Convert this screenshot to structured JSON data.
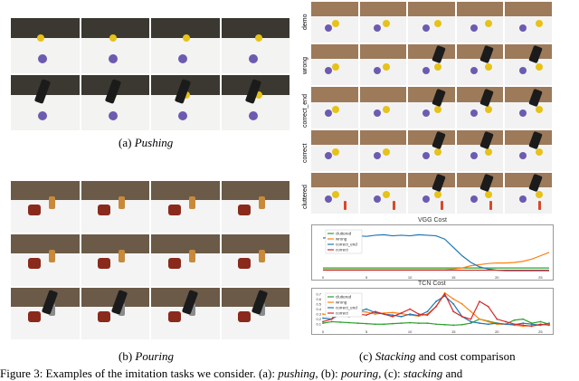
{
  "captions": {
    "pushing": "(a) Pushing",
    "pouring": "(b) Pouring",
    "stacking": "(c) Stacking and cost comparison"
  },
  "caption_parts": {
    "pushing_prefix": "(a) ",
    "pushing_em": "Pushing",
    "pouring_prefix": "(b) ",
    "pouring_em": "Pouring",
    "stacking_prefix": "(c) ",
    "stacking_em": "Stacking",
    "stacking_suffix": " and cost comparison"
  },
  "figure_caption": {
    "prefix": "Figure 3: Examples of the imitation tasks we consider. (a): ",
    "em1": "pushing",
    "mid1": ", (b): ",
    "em2": "pouring",
    "mid2": ", (c): ",
    "em3": "stacking",
    "suffix": " and"
  },
  "stacking_rows": [
    "demo",
    "wrong",
    "correct_end",
    "correct",
    "cluttered"
  ],
  "colors": {
    "cluttered": "#2ca02c",
    "wrong": "#ff7f0e",
    "correct_end": "#1f77b4",
    "correct": "#d62728",
    "wall": "#9c7a5a",
    "table": "#f2f2f2"
  },
  "chart_data": [
    {
      "type": "line",
      "title": "VGG Cost",
      "x": [
        0,
        1,
        2,
        3,
        4,
        5,
        6,
        7,
        8,
        9,
        10,
        11,
        12,
        13,
        14,
        15,
        16,
        17,
        18,
        19,
        20,
        21,
        22,
        23,
        24,
        25,
        26
      ],
      "xticks": [
        "0",
        "5",
        "10",
        "15",
        "20",
        "25"
      ],
      "legend_position": "top-left",
      "grid": false,
      "series": [
        {
          "name": "cluttered",
          "color": "#2ca02c",
          "values": [
            0.08,
            0.08,
            0.08,
            0.08,
            0.08,
            0.08,
            0.08,
            0.08,
            0.08,
            0.08,
            0.08,
            0.08,
            0.08,
            0.08,
            0.08,
            0.08,
            0.08,
            0.08,
            0.08,
            0.08,
            0.08,
            0.08,
            0.08,
            0.08,
            0.08,
            0.08,
            0.08
          ]
        },
        {
          "name": "wrong",
          "color": "#ff7f0e",
          "values": [
            0.05,
            0.05,
            0.05,
            0.05,
            0.05,
            0.05,
            0.05,
            0.05,
            0.05,
            0.05,
            0.05,
            0.05,
            0.05,
            0.05,
            0.05,
            0.06,
            0.08,
            0.12,
            0.14,
            0.16,
            0.17,
            0.17,
            0.18,
            0.2,
            0.24,
            0.3,
            0.36
          ]
        },
        {
          "name": "correct_end",
          "color": "#1f77b4",
          "values": [
            0.62,
            0.63,
            0.62,
            0.64,
            0.66,
            0.65,
            0.67,
            0.68,
            0.66,
            0.67,
            0.66,
            0.68,
            0.67,
            0.66,
            0.6,
            0.45,
            0.3,
            0.18,
            0.1,
            0.06,
            0.04,
            0.03,
            0.03,
            0.03,
            0.03,
            0.03,
            0.03
          ]
        },
        {
          "name": "correct",
          "color": "#d62728",
          "values": [
            0.04,
            0.04,
            0.04,
            0.04,
            0.04,
            0.04,
            0.04,
            0.04,
            0.04,
            0.04,
            0.04,
            0.04,
            0.04,
            0.04,
            0.04,
            0.04,
            0.04,
            0.04,
            0.04,
            0.04,
            0.04,
            0.04,
            0.04,
            0.04,
            0.04,
            0.04,
            0.04
          ]
        }
      ],
      "ylim": [
        0,
        0.8
      ]
    },
    {
      "type": "line",
      "title": "TCN Cost",
      "x": [
        0,
        1,
        2,
        3,
        4,
        5,
        6,
        7,
        8,
        9,
        10,
        11,
        12,
        13,
        14,
        15,
        16,
        17,
        18,
        19,
        20,
        21,
        22,
        23,
        24,
        25,
        26
      ],
      "xticks": [
        "0",
        "5",
        "10",
        "15",
        "20",
        "25"
      ],
      "yticks": [
        "0.1",
        "0.2",
        "0.3",
        "0.4",
        "0.5",
        "0.6",
        "0.7"
      ],
      "legend_position": "top-left",
      "grid": false,
      "series": [
        {
          "name": "cluttered",
          "color": "#2ca02c",
          "values": [
            0.12,
            0.15,
            0.14,
            0.13,
            0.12,
            0.11,
            0.1,
            0.1,
            0.11,
            0.12,
            0.13,
            0.12,
            0.12,
            0.1,
            0.09,
            0.08,
            0.09,
            0.12,
            0.2,
            0.16,
            0.12,
            0.1,
            0.18,
            0.2,
            0.12,
            0.15,
            0.1
          ]
        },
        {
          "name": "wrong",
          "color": "#ff7f0e",
          "values": [
            0.3,
            0.28,
            0.35,
            0.32,
            0.36,
            0.34,
            0.3,
            0.32,
            0.33,
            0.31,
            0.28,
            0.26,
            0.3,
            0.45,
            0.72,
            0.6,
            0.5,
            0.35,
            0.2,
            0.15,
            0.1,
            0.1,
            0.08,
            0.06,
            0.07,
            0.08,
            0.1
          ]
        },
        {
          "name": "correct_end",
          "color": "#1f77b4",
          "values": [
            0.22,
            0.2,
            0.3,
            0.25,
            0.35,
            0.4,
            0.33,
            0.3,
            0.28,
            0.25,
            0.3,
            0.27,
            0.35,
            0.55,
            0.66,
            0.5,
            0.25,
            0.15,
            0.12,
            0.1,
            0.12,
            0.1,
            0.09,
            0.12,
            0.1,
            0.08,
            0.12
          ]
        },
        {
          "name": "correct",
          "color": "#d62728",
          "values": [
            0.15,
            0.2,
            0.45,
            0.32,
            0.3,
            0.28,
            0.35,
            0.3,
            0.25,
            0.32,
            0.4,
            0.3,
            0.28,
            0.45,
            0.7,
            0.35,
            0.25,
            0.2,
            0.55,
            0.45,
            0.2,
            0.15,
            0.1,
            0.08,
            0.06,
            0.1,
            0.08
          ]
        }
      ],
      "ylim": [
        0.05,
        0.75
      ]
    }
  ]
}
